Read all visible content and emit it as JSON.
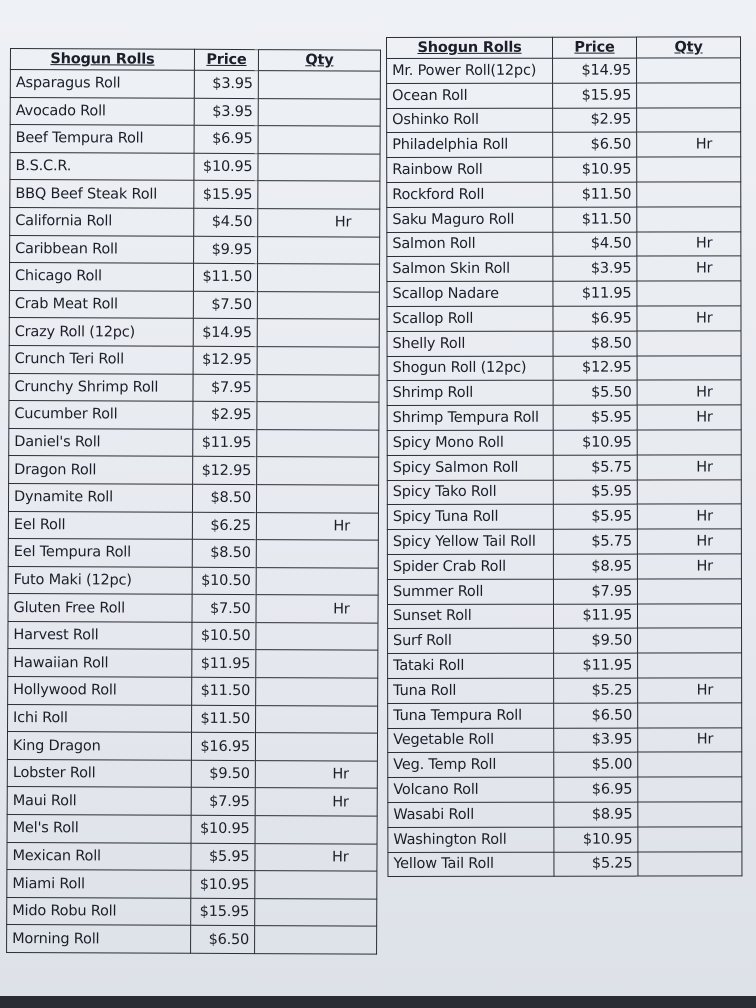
{
  "left_table": {
    "headers": [
      "Shogun Rolls",
      "Price",
      "Qty"
    ],
    "rows": [
      {
        "name": "Asparagus Roll",
        "price": "$3.95",
        "qty": ""
      },
      {
        "name": "Avocado Roll",
        "price": "$3.95",
        "qty": ""
      },
      {
        "name": "Beef Tempura Roll",
        "price": "$6.95",
        "qty": ""
      },
      {
        "name": "B.S.C.R.",
        "price": "$10.95",
        "qty": ""
      },
      {
        "name": "BBQ Beef Steak Roll",
        "price": "$15.95",
        "qty": ""
      },
      {
        "name": "California Roll",
        "price": "$4.50",
        "qty": "Hr"
      },
      {
        "name": "Caribbean Roll",
        "price": "$9.95",
        "qty": ""
      },
      {
        "name": "Chicago Roll",
        "price": "$11.50",
        "qty": ""
      },
      {
        "name": "Crab Meat Roll",
        "price": "$7.50",
        "qty": ""
      },
      {
        "name": "Crazy Roll (12pc)",
        "price": "$14.95",
        "qty": ""
      },
      {
        "name": "Crunch Teri Roll",
        "price": "$12.95",
        "qty": ""
      },
      {
        "name": "Crunchy Shrimp Roll",
        "price": "$7.95",
        "qty": ""
      },
      {
        "name": "Cucumber Roll",
        "price": "$2.95",
        "qty": ""
      },
      {
        "name": "Daniel's Roll",
        "price": "$11.95",
        "qty": ""
      },
      {
        "name": "Dragon Roll",
        "price": "$12.95",
        "qty": ""
      },
      {
        "name": "Dynamite Roll",
        "price": "$8.50",
        "qty": ""
      },
      {
        "name": "Eel Roll",
        "price": "$6.25",
        "qty": "Hr"
      },
      {
        "name": "Eel Tempura Roll",
        "price": "$8.50",
        "qty": ""
      },
      {
        "name": "Futo Maki (12pc)",
        "price": "$10.50",
        "qty": ""
      },
      {
        "name": "Gluten Free Roll",
        "price": "$7.50",
        "qty": "Hr"
      },
      {
        "name": "Harvest Roll",
        "price": "$10.50",
        "qty": ""
      },
      {
        "name": "Hawaiian Roll",
        "price": "$11.95",
        "qty": ""
      },
      {
        "name": "Hollywood Roll",
        "price": "$11.50",
        "qty": ""
      },
      {
        "name": "Ichi Roll",
        "price": "$11.50",
        "qty": ""
      },
      {
        "name": "King Dragon",
        "price": "$16.95",
        "qty": ""
      },
      {
        "name": "Lobster Roll",
        "price": "$9.50",
        "qty": "Hr"
      },
      {
        "name": "Maui Roll",
        "price": "$7.95",
        "qty": "Hr"
      },
      {
        "name": "Mel's Roll",
        "price": "$10.95",
        "qty": ""
      },
      {
        "name": "Mexican Roll",
        "price": "$5.95",
        "qty": "Hr"
      },
      {
        "name": "Miami Roll",
        "price": "$10.95",
        "qty": ""
      },
      {
        "name": "Mido Robu Roll",
        "price": "$15.95",
        "qty": ""
      },
      {
        "name": "Morning Roll",
        "price": "$6.50",
        "qty": ""
      }
    ]
  },
  "right_table": {
    "headers": [
      "Shogun Rolls",
      "Price",
      "Qty"
    ],
    "rows": [
      {
        "name": "Mr. Power Roll(12pc)",
        "price": "$14.95",
        "qty": ""
      },
      {
        "name": "Ocean Roll",
        "price": "$15.95",
        "qty": ""
      },
      {
        "name": "Oshinko Roll",
        "price": "$2.95",
        "qty": ""
      },
      {
        "name": "Philadelphia Roll",
        "price": "$6.50",
        "qty": "Hr"
      },
      {
        "name": "Rainbow Roll",
        "price": "$10.95",
        "qty": ""
      },
      {
        "name": "Rockford Roll",
        "price": "$11.50",
        "qty": ""
      },
      {
        "name": "Saku Maguro Roll",
        "price": "$11.50",
        "qty": ""
      },
      {
        "name": "Salmon Roll",
        "price": "$4.50",
        "qty": "Hr"
      },
      {
        "name": "Salmon Skin Roll",
        "price": "$3.95",
        "qty": "Hr"
      },
      {
        "name": "Scallop Nadare",
        "price": "$11.95",
        "qty": ""
      },
      {
        "name": "Scallop Roll",
        "price": "$6.95",
        "qty": "Hr"
      },
      {
        "name": "Shelly Roll",
        "price": "$8.50",
        "qty": ""
      },
      {
        "name": "Shogun Roll (12pc)",
        "price": "$12.95",
        "qty": ""
      },
      {
        "name": "Shrimp Roll",
        "price": "$5.50",
        "qty": "Hr"
      },
      {
        "name": "Shrimp Tempura Roll",
        "price": "$5.95",
        "qty": "Hr"
      },
      {
        "name": "Spicy Mono Roll",
        "price": "$10.95",
        "qty": ""
      },
      {
        "name": "Spicy Salmon Roll",
        "price": "$5.75",
        "qty": "Hr"
      },
      {
        "name": "Spicy Tako Roll",
        "price": "$5.95",
        "qty": ""
      },
      {
        "name": "Spicy Tuna Roll",
        "price": "$5.95",
        "qty": "Hr"
      },
      {
        "name": "Spicy Yellow Tail Roll",
        "price": "$5.75",
        "qty": "Hr"
      },
      {
        "name": "Spider Crab Roll",
        "price": "$8.95",
        "qty": "Hr"
      },
      {
        "name": "Summer Roll",
        "price": "$7.95",
        "qty": ""
      },
      {
        "name": "Sunset Roll",
        "price": "$11.95",
        "qty": ""
      },
      {
        "name": "Surf Roll",
        "price": "$9.50",
        "qty": ""
      },
      {
        "name": "Tataki Roll",
        "price": "$11.95",
        "qty": ""
      },
      {
        "name": "Tuna Roll",
        "price": "$5.25",
        "qty": "Hr"
      },
      {
        "name": "Tuna Tempura Roll",
        "price": "$6.50",
        "qty": ""
      },
      {
        "name": "Vegetable Roll",
        "price": "$3.95",
        "qty": "Hr"
      },
      {
        "name": "Veg. Temp Roll",
        "price": "$5.00",
        "qty": ""
      },
      {
        "name": "Volcano Roll",
        "price": "$6.95",
        "qty": ""
      },
      {
        "name": "Wasabi Roll",
        "price": "$8.95",
        "qty": ""
      },
      {
        "name": "Washington Roll",
        "price": "$10.95",
        "qty": ""
      },
      {
        "name": "Yellow Tail Roll",
        "price": "$5.25",
        "qty": ""
      }
    ]
  }
}
